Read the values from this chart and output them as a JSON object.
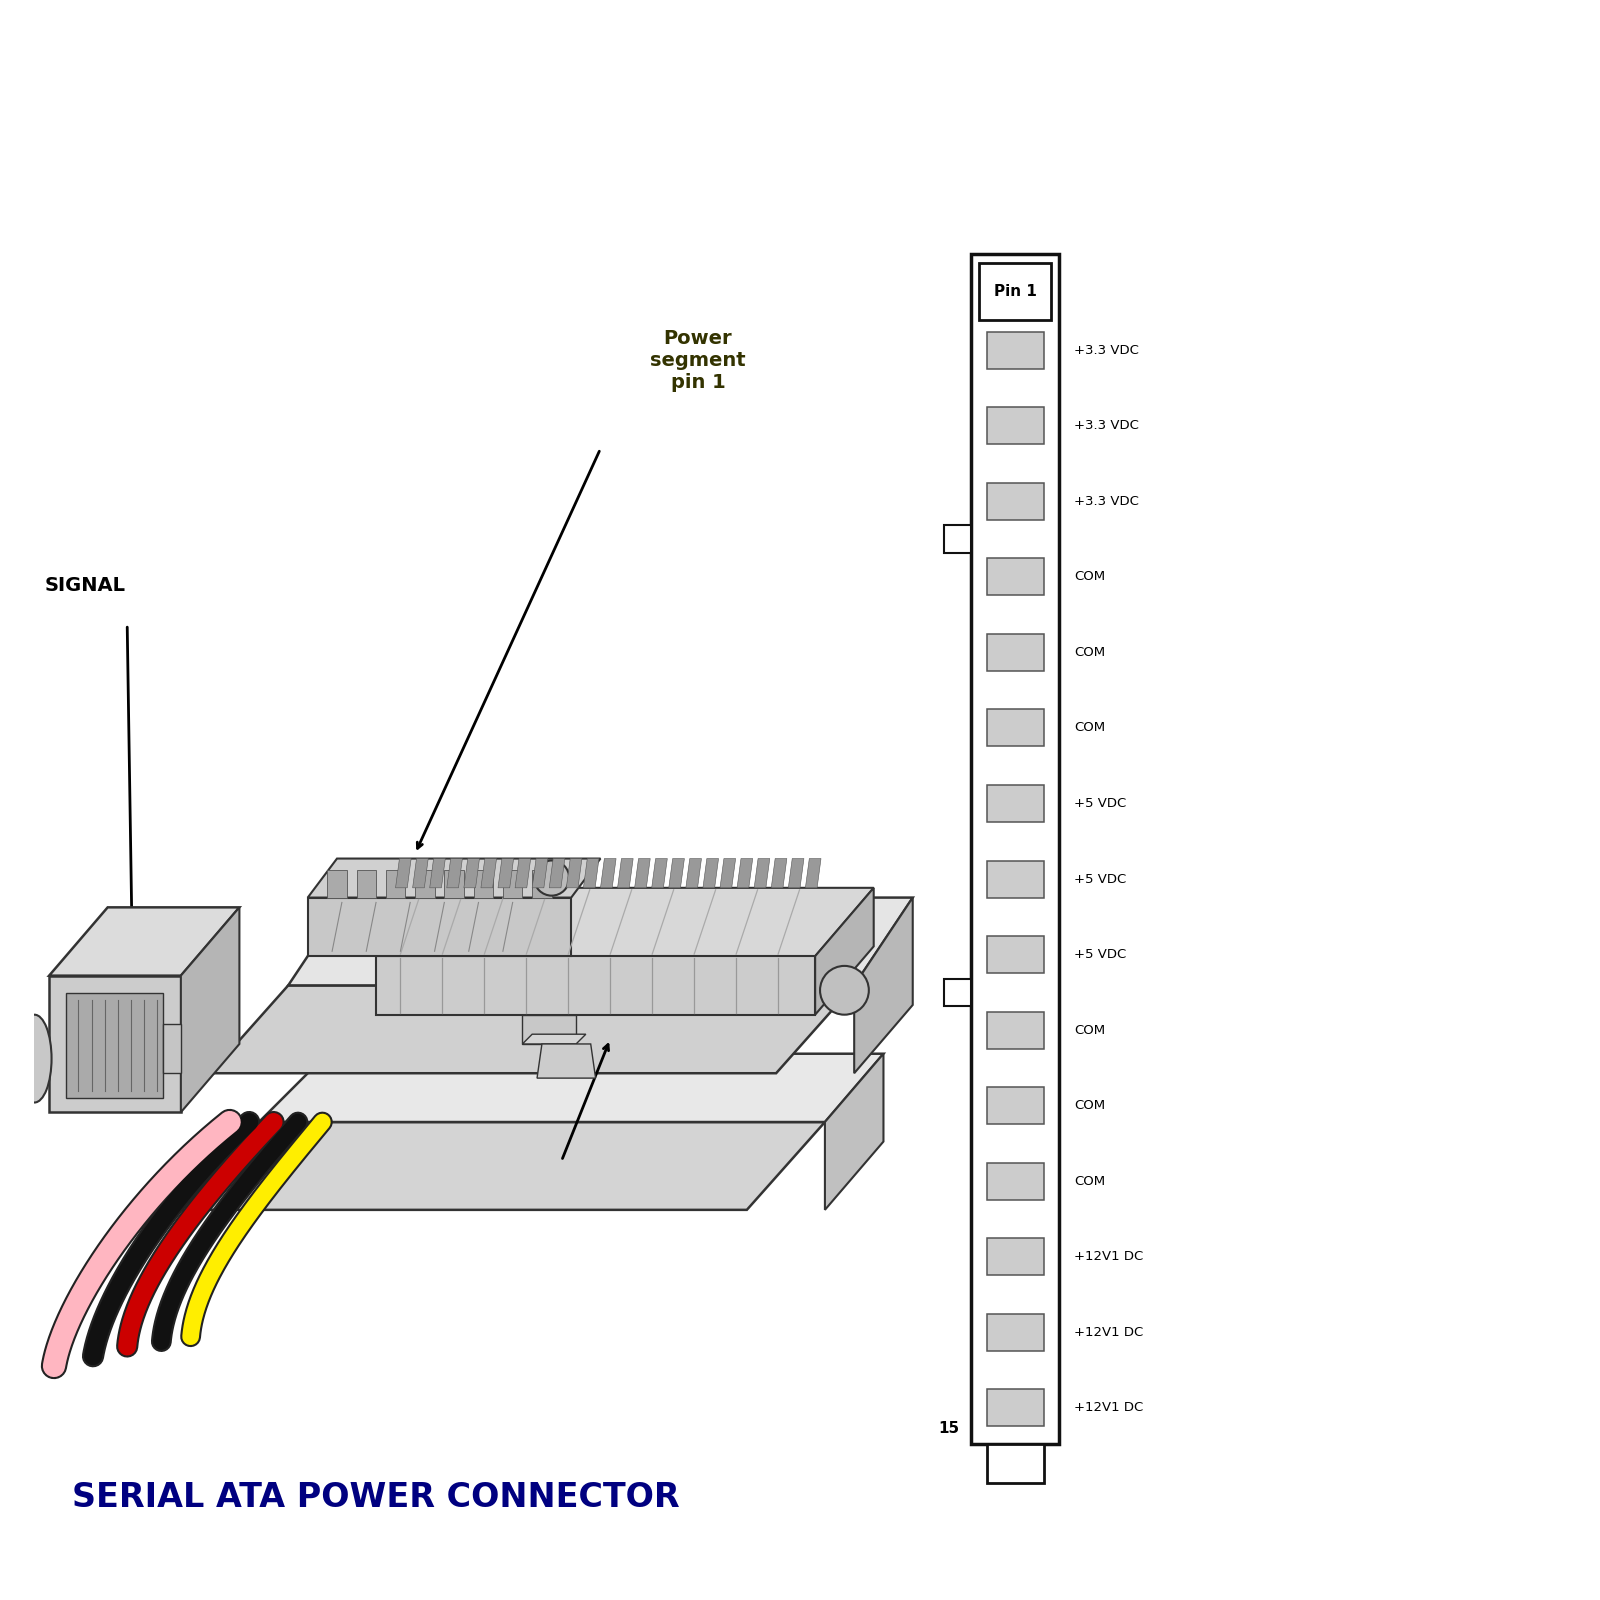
{
  "bg_color": "#ffffff",
  "title_text": "SERIAL ATA POWER CONNECTOR",
  "title_color": "#000080",
  "title_fontsize": 24,
  "signal_label": "SIGNAL",
  "power_segment_label": "Power\nsegment\npin 1",
  "pin1_label": "Pin 1",
  "pin15_label": "15",
  "pin_labels": [
    "+3.3 VDC",
    "+3.3 VDC",
    "+3.3 VDC",
    "COM",
    "COM",
    "COM",
    "+5 VDC",
    "+5 VDC",
    "+5 VDC",
    "COM",
    "COM",
    "COM",
    "+12V1 DC",
    "+12V1 DC",
    "+12V1 DC"
  ],
  "wire_colors": [
    "#ffb6c1",
    "#111111",
    "#cc0000",
    "#111111",
    "#ffee00"
  ],
  "notch_after_pins": [
    2,
    8
  ],
  "face_color": "#d8d8d8",
  "top_color": "#ebebeb",
  "edge_color": "#333333",
  "slot_color": "#999999"
}
